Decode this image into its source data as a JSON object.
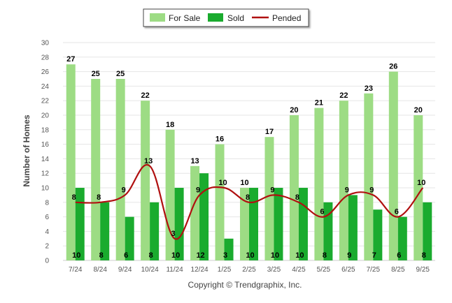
{
  "chart_data": {
    "type": "bar",
    "title": "",
    "xlabel": "",
    "ylabel": "Number of Homes",
    "ylim": [
      0,
      30
    ],
    "ytick_step": 2,
    "grid": true,
    "legend_position": "top-center",
    "categories": [
      "7/24",
      "8/24",
      "9/24",
      "10/24",
      "11/24",
      "12/24",
      "1/25",
      "2/25",
      "3/25",
      "4/25",
      "5/25",
      "6/25",
      "7/25",
      "8/25",
      "9/25"
    ],
    "series": [
      {
        "name": "For Sale",
        "kind": "bar",
        "values": [
          27,
          25,
          25,
          22,
          18,
          13,
          16,
          10,
          17,
          20,
          21,
          22,
          23,
          26,
          20
        ]
      },
      {
        "name": "Sold",
        "kind": "bar",
        "values": [
          10,
          8,
          6,
          8,
          10,
          12,
          3,
          10,
          10,
          10,
          8,
          9,
          7,
          6,
          8
        ]
      },
      {
        "name": "Pended",
        "kind": "line",
        "values": [
          8,
          8,
          9,
          13,
          3,
          9,
          10,
          8,
          9,
          8,
          6,
          9,
          9,
          6,
          10
        ]
      }
    ],
    "colors": {
      "for_sale": "#9ddc84",
      "sold": "#1aab2e",
      "pended": "#b01010",
      "grid": "#e6e6e6",
      "axis": "#cccccc"
    }
  },
  "legend": {
    "items": [
      "For Sale",
      "Sold",
      "Pended"
    ]
  },
  "footer": {
    "copyright": "Copyright © Trendgraphix, Inc."
  }
}
